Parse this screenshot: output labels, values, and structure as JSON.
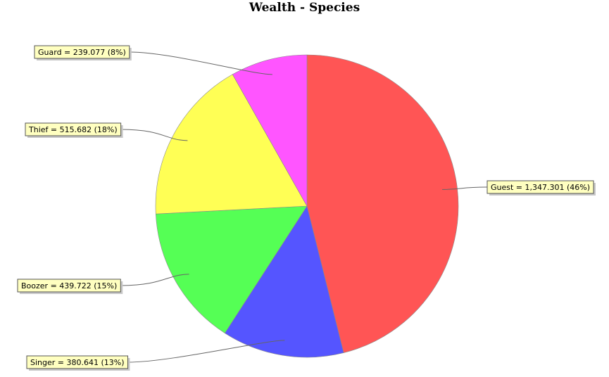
{
  "chart_data": {
    "type": "pie",
    "title": "Wealth - Species",
    "slices": [
      {
        "name": "Guest",
        "value": 1347.301,
        "value_text": "1,347.301",
        "percent_text": "46%",
        "color": "#ff5555"
      },
      {
        "name": "Singer",
        "value": 380.641,
        "value_text": "380.641",
        "percent_text": "13%",
        "color": "#5555ff"
      },
      {
        "name": "Boozer",
        "value": 439.722,
        "value_text": "439.722",
        "percent_text": "15%",
        "color": "#55ff55"
      },
      {
        "name": "Thief",
        "value": 515.682,
        "value_text": "515.682",
        "percent_text": "18%",
        "color": "#ffff55"
      },
      {
        "name": "Guard",
        "value": 239.077,
        "value_text": "239.077",
        "percent_text": "8%",
        "color": "#ff55ff"
      }
    ]
  }
}
